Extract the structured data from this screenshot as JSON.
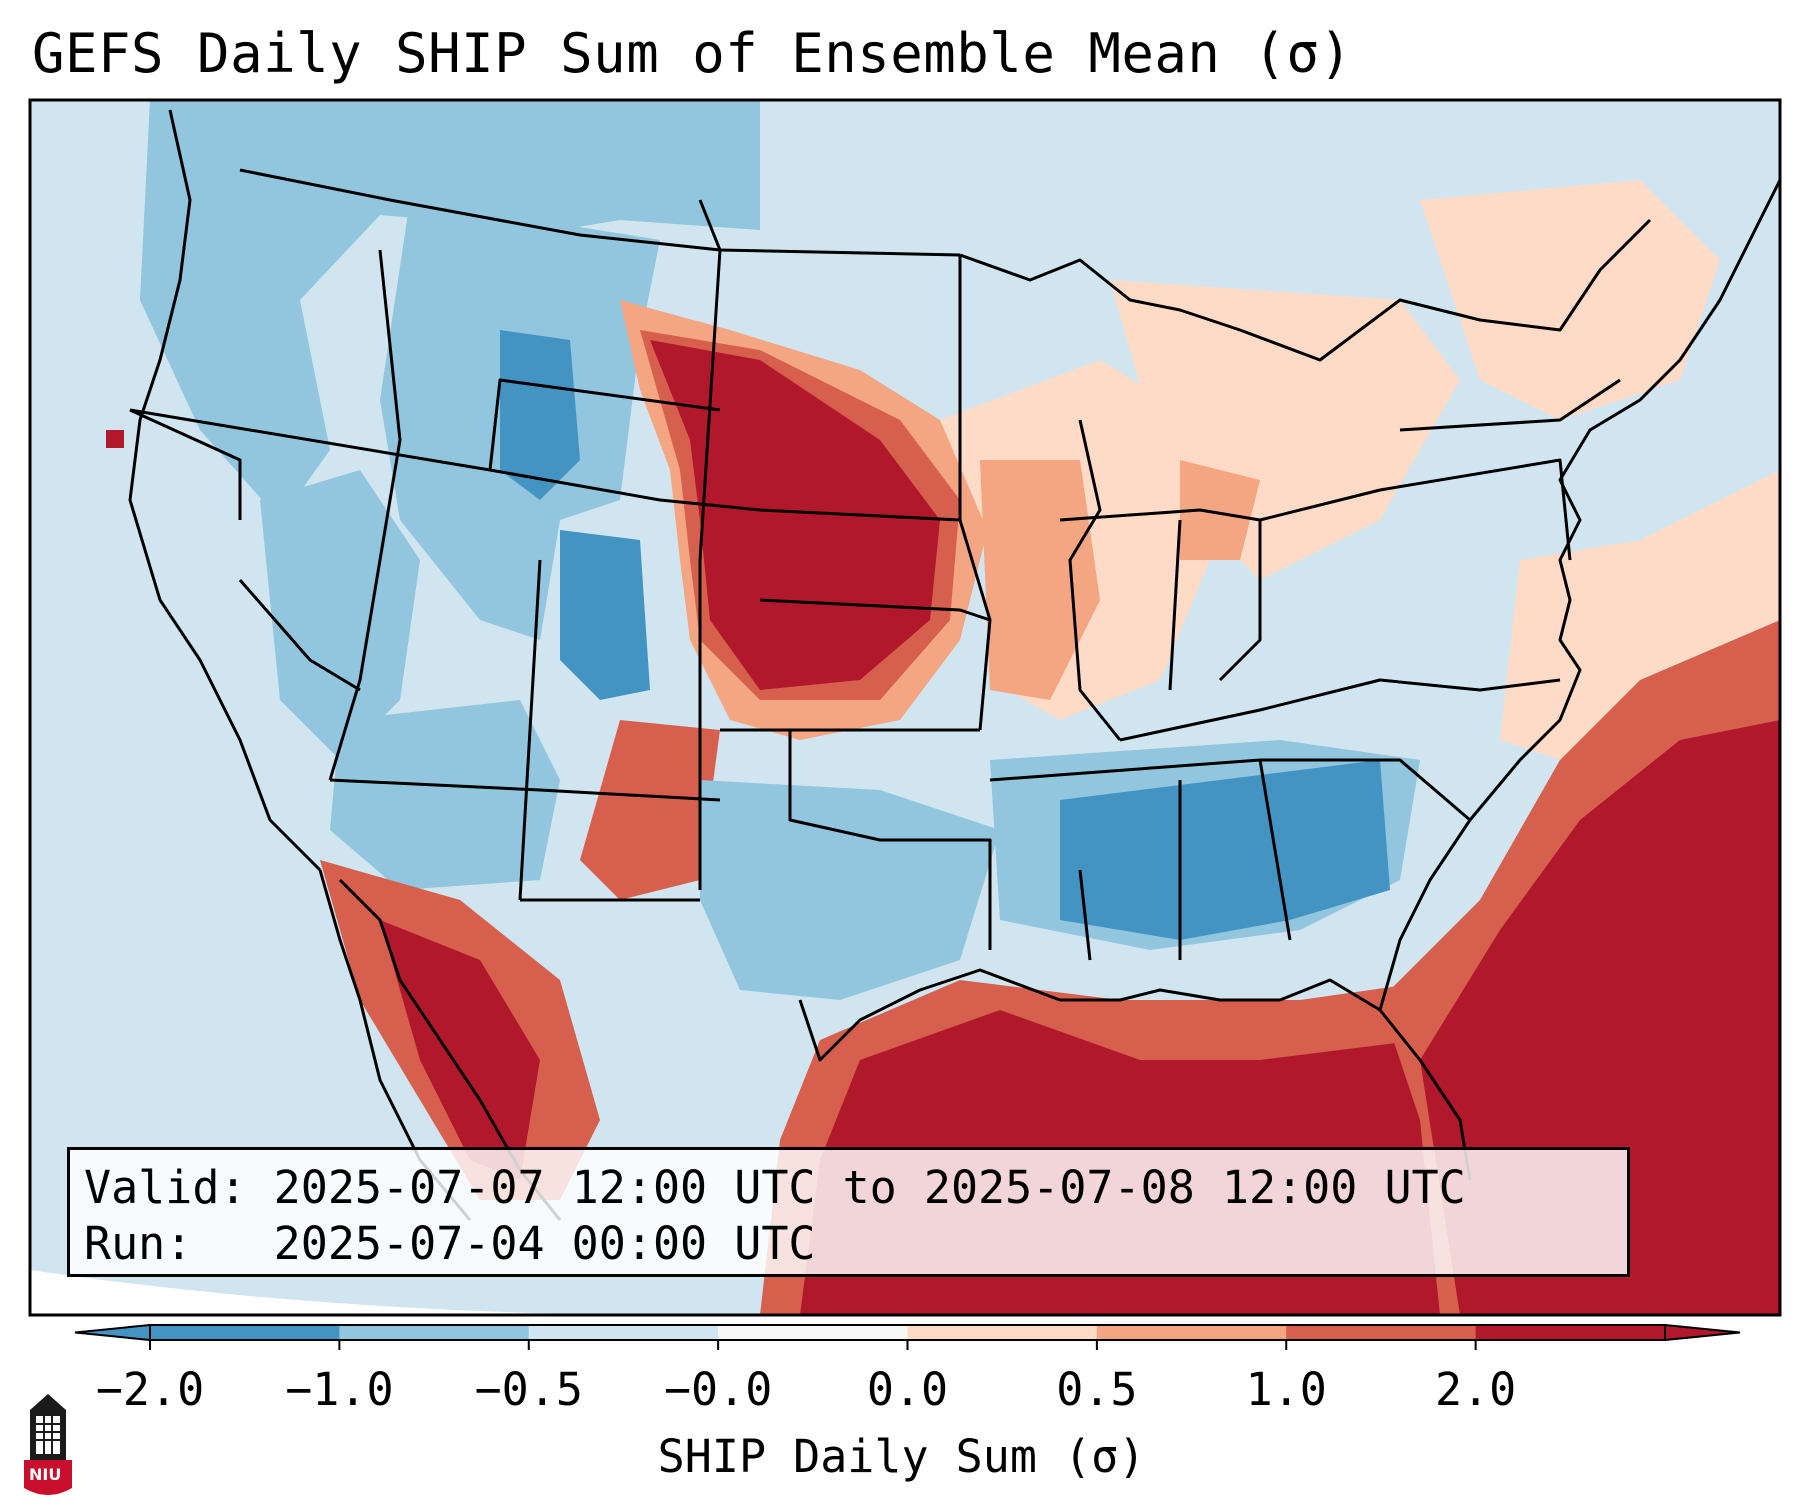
{
  "title": "GEFS Daily SHIP Sum of Ensemble Mean (σ)",
  "info": {
    "valid_label": "Valid:",
    "valid_value": "2025-07-07 12:00 UTC to 2025-07-08 12:00 UTC",
    "run_label": "Run:",
    "run_value": "2025-07-04 00:00 UTC"
  },
  "colorbar": {
    "label": "SHIP Daily Sum (σ)",
    "ticks": [
      "−2.0",
      "−1.0",
      "−0.5",
      "−0.0",
      "0.0",
      "0.5",
      "1.0",
      "2.0"
    ],
    "colors": [
      "#4393c3",
      "#92c5de",
      "#d1e5f0",
      "#f7f7f7",
      "#fddbc7",
      "#f4a582",
      "#d6604d",
      "#b2182b"
    ],
    "extend": "both"
  },
  "logo": {
    "icon": "niu-logo-icon",
    "text": "NIU"
  },
  "colors": {
    "deep_blue": "#4393c3",
    "blue": "#92c5de",
    "light_blue": "#d1e5f0",
    "light_red": "#fddbc7",
    "salmon": "#f4a582",
    "red": "#d6604d",
    "deep_red": "#b2182b"
  }
}
